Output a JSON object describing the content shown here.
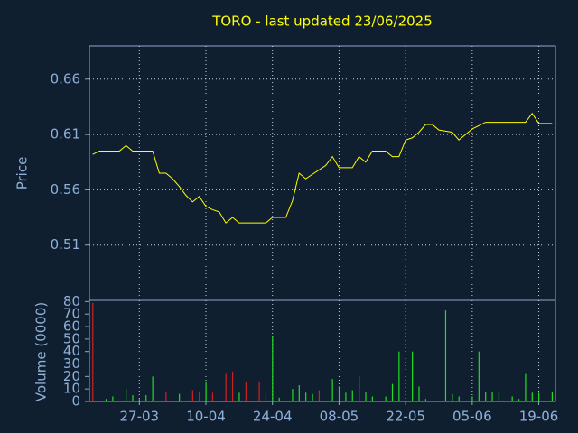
{
  "chart_data": [
    {
      "type": "line",
      "title": "TORO - last updated 23/06/2025",
      "y_label": "Price",
      "color": "#ffff00",
      "grid": true,
      "ylim": [
        0.46,
        0.69
      ],
      "yticks": [
        0.51,
        0.56,
        0.61,
        0.66
      ],
      "values": [
        0.592,
        0.595,
        0.595,
        0.595,
        0.595,
        0.6,
        0.595,
        0.595,
        0.595,
        0.595,
        0.575,
        0.575,
        0.57,
        0.563,
        0.555,
        0.549,
        0.554,
        0.545,
        0.542,
        0.54,
        0.53,
        0.535,
        0.53,
        0.53,
        0.53,
        0.53,
        0.53,
        0.535,
        0.535,
        0.535,
        0.55,
        0.575,
        0.57,
        0.574,
        0.578,
        0.582,
        0.59,
        0.58,
        0.58,
        0.58,
        0.59,
        0.585,
        0.595,
        0.595,
        0.595,
        0.59,
        0.59,
        0.605,
        0.607,
        0.612,
        0.619,
        0.619,
        0.614,
        0.613,
        0.612,
        0.605,
        0.61,
        0.615,
        0.618,
        0.621,
        0.621,
        0.621,
        0.621,
        0.621,
        0.621,
        0.621,
        0.629,
        0.62,
        0.62,
        0.62
      ]
    },
    {
      "type": "bar",
      "y_label": "Volume (0000)",
      "ylim": [
        0,
        81
      ],
      "yticks": [
        0,
        10,
        20,
        30,
        40,
        50,
        60,
        70,
        80
      ],
      "categories": [
        null,
        null,
        null,
        null,
        null,
        null,
        null,
        "27-03",
        null,
        null,
        null,
        null,
        null,
        null,
        null,
        null,
        null,
        "10-04",
        null,
        null,
        null,
        null,
        null,
        null,
        null,
        null,
        null,
        "24-04",
        null,
        null,
        null,
        null,
        null,
        null,
        null,
        null,
        null,
        "08-05",
        null,
        null,
        null,
        null,
        null,
        null,
        null,
        null,
        null,
        "22-05",
        null,
        null,
        null,
        null,
        null,
        null,
        null,
        null,
        null,
        "05-06",
        null,
        null,
        null,
        null,
        null,
        null,
        null,
        null,
        null,
        "19-06",
        null,
        null
      ],
      "values": [
        79,
        0,
        2,
        4,
        0,
        10,
        5,
        2,
        5,
        20,
        0,
        8,
        0,
        6,
        0,
        9,
        8,
        16,
        7,
        0,
        22,
        24,
        7,
        16,
        0,
        16,
        6,
        52,
        3,
        0,
        10,
        13,
        7,
        6,
        9,
        0,
        18,
        12,
        7,
        9,
        20,
        8,
        4,
        0,
        4,
        14,
        40,
        0,
        40,
        12,
        2,
        0,
        0,
        73,
        6,
        4,
        0,
        4,
        40,
        8,
        8,
        8,
        0,
        4,
        2,
        22,
        7,
        7,
        0,
        8
      ],
      "colors": [
        "#d02020",
        "#22dd22",
        "#22dd22",
        "#22dd22",
        "#22dd22",
        "#22dd22",
        "#22dd22",
        "#22dd22",
        "#22dd22",
        "#22dd22",
        "#22dd22",
        "#d02020",
        "#22dd22",
        "#22dd22",
        "#22dd22",
        "#d02020",
        "#d02020",
        "#22dd22",
        "#d02020",
        "#22dd22",
        "#d02020",
        "#d02020",
        "#22dd22",
        "#d02020",
        "#22dd22",
        "#d02020",
        "#d02020",
        "#22dd22",
        "#22dd22",
        "#22dd22",
        "#22dd22",
        "#22dd22",
        "#22dd22",
        "#22dd22",
        "#d02020",
        "#22dd22",
        "#22dd22",
        "#22dd22",
        "#22dd22",
        "#22dd22",
        "#22dd22",
        "#22dd22",
        "#22dd22",
        "#22dd22",
        "#22dd22",
        "#22dd22",
        "#22dd22",
        "#22dd22",
        "#22dd22",
        "#22dd22",
        "#22dd22",
        "#22dd22",
        "#22dd22",
        "#22dd22",
        "#22dd22",
        "#22dd22",
        "#22dd22",
        "#22dd22",
        "#22dd22",
        "#22dd22",
        "#22dd22",
        "#22dd22",
        "#22dd22",
        "#22dd22",
        "#22dd22",
        "#22dd22",
        "#22dd22",
        "#22dd22",
        "#22dd22",
        "#22dd22"
      ]
    }
  ]
}
